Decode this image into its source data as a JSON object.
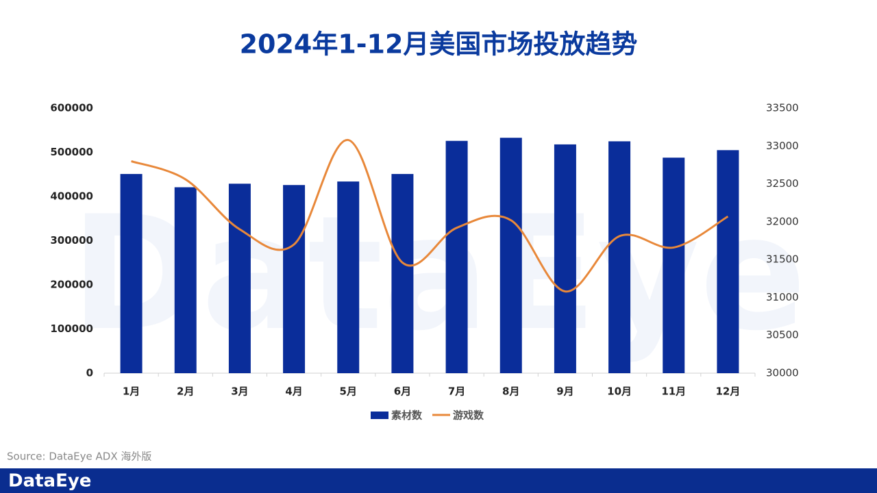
{
  "chart_data": {
    "type": "bar-line",
    "title": "2024年1-12月美国市场投放趋势",
    "categories": [
      "1月",
      "2月",
      "3月",
      "4月",
      "5月",
      "6月",
      "7月",
      "8月",
      "9月",
      "10月",
      "11月",
      "12月"
    ],
    "series": [
      {
        "name": "素材数",
        "type": "bar",
        "color": "#0a2d9a",
        "values": [
          451000,
          421000,
          429000,
          426000,
          434000,
          451000,
          526000,
          533000,
          518000,
          525000,
          488000,
          505000
        ]
      },
      {
        "name": "游戏数",
        "type": "line",
        "axis": "y2",
        "color": "#e8883a",
        "values": [
          32800,
          32560,
          31900,
          31700,
          33080,
          31460,
          31920,
          32020,
          31080,
          31810,
          31660,
          32070
        ]
      }
    ],
    "ylim": [
      0,
      600000
    ],
    "yticks": [
      0,
      100000,
      200000,
      300000,
      400000,
      500000,
      600000
    ],
    "y2lim": [
      30000,
      33500
    ],
    "y2ticks": [
      30000,
      30500,
      31000,
      31500,
      32000,
      32500,
      33000,
      33500
    ],
    "legend": "bottom",
    "source": "Source: DataEye ADX 海外版",
    "watermark": "DataEye",
    "logo": "DataEye"
  }
}
